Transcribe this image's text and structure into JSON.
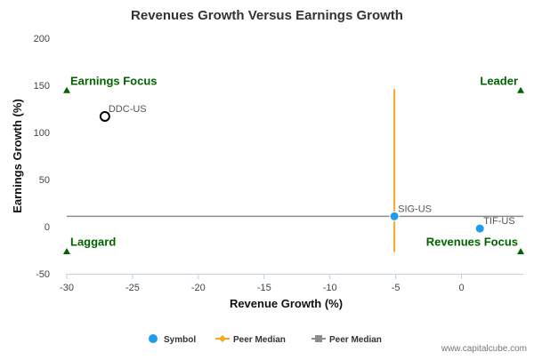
{
  "chart_data": {
    "type": "scatter",
    "title": "Revenues Growth Versus Earnings Growth",
    "xlabel": "Revenue Growth (%)",
    "ylabel": "Earnings Growth (%)",
    "xlim": [
      -30,
      4.7
    ],
    "ylim": [
      -50,
      200
    ],
    "xticks": [
      -30,
      -25,
      -20,
      -15,
      -10,
      -5,
      0
    ],
    "yticks": [
      -50,
      0,
      50,
      100,
      150,
      200
    ],
    "points": [
      {
        "label": "DDC-US",
        "x": -27.1,
        "y": 117,
        "style": "hollow"
      },
      {
        "label": "SIG-US",
        "x": -5.1,
        "y": 11,
        "style": "filled"
      },
      {
        "label": "TIF-US",
        "x": 1.4,
        "y": -2,
        "style": "filled"
      }
    ],
    "peer_median": {
      "x": -5.1,
      "y": 11,
      "x_range": [
        -27,
        146
      ],
      "y_range": [
        -30,
        4.7
      ]
    },
    "quadrants": [
      {
        "label": "Earnings Focus",
        "corner": "top-left",
        "x": -30,
        "y": 145
      },
      {
        "label": "Leader",
        "corner": "top-right",
        "x": 4.5,
        "y": 145
      },
      {
        "label": "Laggard",
        "corner": "bottom-left",
        "x": -30,
        "y": -26
      },
      {
        "label": "Revenues Focus",
        "corner": "bottom-right",
        "x": 4.5,
        "y": -26
      }
    ],
    "legend": {
      "placement": "bottom-center",
      "items": [
        {
          "label": "Symbol",
          "marker": "circle"
        },
        {
          "label": "Peer Median",
          "marker": "diamond-line"
        },
        {
          "label": "Peer Median",
          "marker": "square-line"
        }
      ]
    },
    "colors": {
      "symbol": "#1e9ce8",
      "peer_vertical": "#f5a623",
      "peer_horizontal": "#8c8c8c",
      "quadrant": "#006400"
    }
  },
  "credit": "www.capitalcube.com"
}
